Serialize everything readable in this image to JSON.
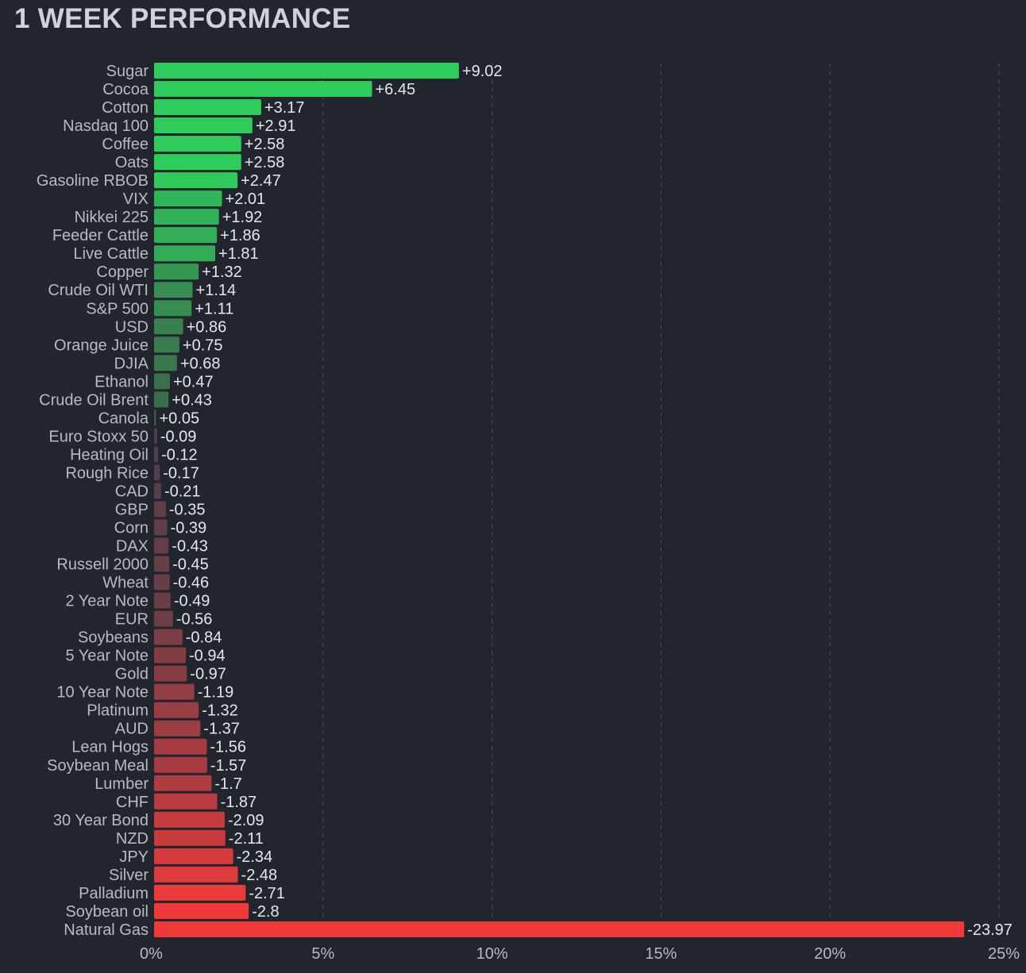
{
  "title": "1 WEEK PERFORMANCE",
  "colors": {
    "background": "#22252e",
    "positive_strong": "#2ecc5b",
    "positive_weak": "#3d5a48",
    "negative_weak": "#4a3f48",
    "negative_strong": "#f03a3a",
    "grid": "#4a4e58"
  },
  "chart_data": {
    "type": "bar",
    "orientation": "horizontal",
    "title": "1 WEEK PERFORMANCE",
    "xlabel": "",
    "ylabel": "",
    "xlim": [
      0,
      25
    ],
    "x_ticks": [
      0,
      5,
      10,
      15,
      20,
      25
    ],
    "x_tick_labels": [
      "0%",
      "5%",
      "10%",
      "15%",
      "20%",
      "25%"
    ],
    "bar_length": "absolute value",
    "grid": true,
    "categories": [
      "Sugar",
      "Cocoa",
      "Cotton",
      "Nasdaq 100",
      "Coffee",
      "Oats",
      "Gasoline RBOB",
      "VIX",
      "Nikkei 225",
      "Feeder Cattle",
      "Live Cattle",
      "Copper",
      "Crude Oil WTI",
      "S&P 500",
      "USD",
      "Orange Juice",
      "DJIA",
      "Ethanol",
      "Crude Oil Brent",
      "Canola",
      "Euro Stoxx 50",
      "Heating Oil",
      "Rough Rice",
      "CAD",
      "GBP",
      "Corn",
      "DAX",
      "Russell 2000",
      "Wheat",
      "2 Year Note",
      "EUR",
      "Soybeans",
      "5 Year Note",
      "Gold",
      "10 Year Note",
      "Platinum",
      "AUD",
      "Lean Hogs",
      "Soybean Meal",
      "Lumber",
      "CHF",
      "30 Year Bond",
      "NZD",
      "JPY",
      "Silver",
      "Palladium",
      "Soybean oil",
      "Natural Gas"
    ],
    "values": [
      9.02,
      6.45,
      3.17,
      2.91,
      2.58,
      2.58,
      2.47,
      2.01,
      1.92,
      1.86,
      1.81,
      1.32,
      1.14,
      1.11,
      0.86,
      0.75,
      0.68,
      0.47,
      0.43,
      0.05,
      -0.09,
      -0.12,
      -0.17,
      -0.21,
      -0.35,
      -0.39,
      -0.43,
      -0.45,
      -0.46,
      -0.49,
      -0.56,
      -0.84,
      -0.94,
      -0.97,
      -1.19,
      -1.32,
      -1.37,
      -1.56,
      -1.57,
      -1.7,
      -1.87,
      -2.09,
      -2.11,
      -2.34,
      -2.48,
      -2.71,
      -2.8,
      -23.97
    ],
    "value_labels": [
      "+9.02",
      "+6.45",
      "+3.17",
      "+2.91",
      "+2.58",
      "+2.58",
      "+2.47",
      "+2.01",
      "+1.92",
      "+1.86",
      "+1.81",
      "+1.32",
      "+1.14",
      "+1.11",
      "+0.86",
      "+0.75",
      "+0.68",
      "+0.47",
      "+0.43",
      "+0.05",
      "-0.09",
      "-0.12",
      "-0.17",
      "-0.21",
      "-0.35",
      "-0.39",
      "-0.43",
      "-0.45",
      "-0.46",
      "-0.49",
      "-0.56",
      "-0.84",
      "-0.94",
      "-0.97",
      "-1.19",
      "-1.32",
      "-1.37",
      "-1.56",
      "-1.57",
      "-1.7",
      "-1.87",
      "-2.09",
      "-2.11",
      "-2.34",
      "-2.48",
      "-2.71",
      "-2.8",
      "-23.97"
    ]
  }
}
